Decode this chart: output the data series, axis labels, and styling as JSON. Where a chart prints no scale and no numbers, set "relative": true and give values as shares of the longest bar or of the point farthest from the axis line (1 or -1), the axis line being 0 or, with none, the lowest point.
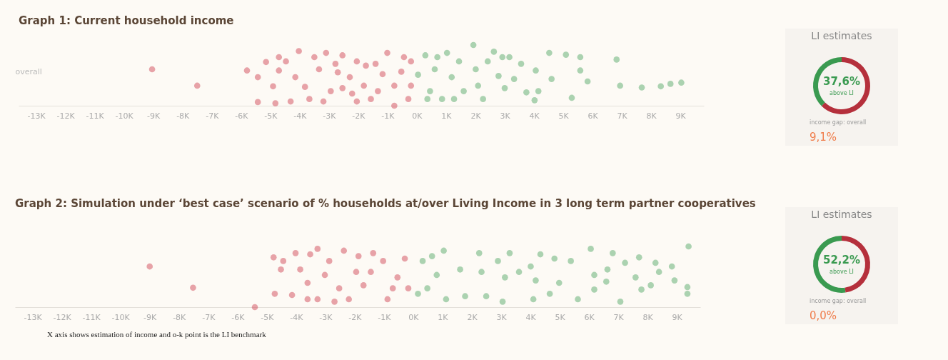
{
  "chart_data": [
    {
      "type": "scatter",
      "title": "Graph 1: Current household income",
      "ylabel": "overall",
      "relative": true,
      "xlim": [
        -13.6,
        9.8
      ],
      "xticks": [
        {
          "value": -13,
          "label": "-13K"
        },
        {
          "value": -12,
          "label": "-12K"
        },
        {
          "value": -11,
          "label": "-11K"
        },
        {
          "value": -10,
          "label": "-10K"
        },
        {
          "value": -9,
          "label": "-9K"
        },
        {
          "value": -8,
          "label": "-8K"
        },
        {
          "value": -7,
          "label": "-7K"
        },
        {
          "value": -6,
          "label": "-6K"
        },
        {
          "value": -5,
          "label": "-5K"
        },
        {
          "value": -4,
          "label": "-4K"
        },
        {
          "value": -3,
          "label": "-3K"
        },
        {
          "value": -2,
          "label": "-2K"
        },
        {
          "value": -1,
          "label": "-1K"
        },
        {
          "value": 0,
          "label": "0K"
        },
        {
          "value": 1,
          "label": "1K"
        },
        {
          "value": 2,
          "label": "2K"
        },
        {
          "value": 3,
          "label": "3K"
        },
        {
          "value": 4,
          "label": "4K"
        },
        {
          "value": 5,
          "label": "5K"
        },
        {
          "value": 6,
          "label": "6K"
        },
        {
          "value": 7,
          "label": "7K"
        },
        {
          "value": 8,
          "label": "8K"
        },
        {
          "value": 9,
          "label": "9K"
        }
      ],
      "series": [
        {
          "color": "#c8283c",
          "x": [
            -9.04,
            -7.5,
            -5.8,
            -5.43,
            -5.15,
            -5.43,
            -4.91,
            -4.83,
            -4.71,
            -4.71,
            -4.47,
            -4.03,
            -4.31,
            -3.82,
            -4.15,
            -3.67,
            -3.1,
            -3.34,
            -2.94,
            -2.54,
            -2.29,
            -2.05,
            -1.74,
            -1.33,
            -1.01,
            -0.53,
            -0.29,
            -0.44,
            -0.77,
            -1.57,
            -2.7,
            -3.19,
            -2.05,
            -1.17,
            -2.54,
            -0.2,
            -1.81,
            -3.5,
            -1.41,
            -2.21,
            -0.77,
            -2.78,
            -0.2
          ],
          "values": [
            0.6,
            0.33,
            0.58,
            0.47,
            0.72,
            0.06,
            0.32,
            0.04,
            0.8,
            0.58,
            0.73,
            0.9,
            0.07,
            0.31,
            0.47,
            0.11,
            0.87,
            0.6,
            0.24,
            0.83,
            0.47,
            0.07,
            0.66,
            0.24,
            0.87,
            0.56,
            0.11,
            0.8,
            0.33,
            0.11,
            0.55,
            0.07,
            0.73,
            0.52,
            0.29,
            0.33,
            0.33,
            0.8,
            0.69,
            0.2,
            0,
            0.69,
            0.73
          ]
        },
        {
          "color": "#3a9a50",
          "x": [
            0.29,
            0.45,
            0.61,
            0.86,
            1.03,
            1.19,
            1.44,
            1.6,
            1.93,
            2.01,
            2.09,
            2.26,
            2.42,
            2.63,
            2.79,
            2.92,
            3.16,
            3.0,
            3.32,
            3.56,
            3.74,
            4.06,
            4.15,
            4.02,
            4.52,
            4.6,
            5.09,
            5.29,
            5.58,
            5.58,
            5.83,
            6.82,
            6.94,
            7.68,
            8.33,
            8.66,
            9.03,
            0.36,
            0.04,
            0.7,
            1.27
          ],
          "values": [
            0.83,
            0.24,
            0.6,
            0.11,
            0.87,
            0.47,
            0.73,
            0.24,
            1,
            0.6,
            0.33,
            0.11,
            0.73,
            0.89,
            0.49,
            0.8,
            0.8,
            0.29,
            0.44,
            0.69,
            0.22,
            0.58,
            0.24,
            0.09,
            0.87,
            0.44,
            0.84,
            0.13,
            0.8,
            0.58,
            0.4,
            0.76,
            0.33,
            0.3,
            0.32,
            0.36,
            0.38,
            0.11,
            0.51,
            0.8,
            0.11
          ]
        }
      ]
    },
    {
      "type": "donut",
      "title": "LI estimates",
      "categories": [
        "above LI",
        null
      ],
      "values": [
        37.6,
        62.4
      ],
      "colors": [
        "#3a9a50",
        "#b5303c"
      ],
      "value_labels": [
        "37,6%",
        null
      ],
      "annotations": [
        "income gap: overall",
        "9,1%"
      ]
    },
    {
      "type": "scatter",
      "title": "Graph 2: Simulation under ‘best case’ scenario of % households at/over Living Income in 3 long term partner cooperatives",
      "relative": true,
      "xlim": [
        -13.6,
        9.8
      ],
      "xticks": [
        {
          "value": -13,
          "label": "-13K"
        },
        {
          "value": -12,
          "label": "-12K"
        },
        {
          "value": -11,
          "label": "-11K"
        },
        {
          "value": -10,
          "label": "-10K"
        },
        {
          "value": -9,
          "label": "-9K"
        },
        {
          "value": -8,
          "label": "-8K"
        },
        {
          "value": -7,
          "label": "-7K"
        },
        {
          "value": -6,
          "label": "-6K"
        },
        {
          "value": -5,
          "label": "-5K"
        },
        {
          "value": -4,
          "label": "-4K"
        },
        {
          "value": -3,
          "label": "-3K"
        },
        {
          "value": -2,
          "label": "-2K"
        },
        {
          "value": -1,
          "label": "-1K"
        },
        {
          "value": 0,
          "label": "0K"
        },
        {
          "value": 1,
          "label": "1K"
        },
        {
          "value": 2,
          "label": "2K"
        },
        {
          "value": 3,
          "label": "3K"
        },
        {
          "value": 4,
          "label": "4K"
        },
        {
          "value": 5,
          "label": "5K"
        },
        {
          "value": 6,
          "label": "6K"
        },
        {
          "value": 7,
          "label": "7K"
        },
        {
          "value": 8,
          "label": "8K"
        },
        {
          "value": 9,
          "label": "9K"
        }
      ],
      "annotations": [
        "X axis shows estimation of income and o-k point is the LI benchmark"
      ],
      "series": [
        {
          "color": "#c8283c",
          "x": [
            -9.0,
            -7.52,
            -5.41,
            -4.77,
            -4.44,
            -4.52,
            -4.73,
            -4.14,
            -4.02,
            -3.52,
            -3.27,
            -3.86,
            -3.61,
            -3.27,
            -2.87,
            -3.02,
            -2.53,
            -2.37,
            -2.2,
            -1.95,
            -1.7,
            -1.37,
            -1.03,
            -0.88,
            -0.54,
            -0.29,
            -0.17,
            -1.45,
            -0.7,
            -1.87,
            -2.69,
            -3.61
          ],
          "values": [
            0.67,
            0.32,
            0,
            0.82,
            0.76,
            0.62,
            0.22,
            0.2,
            0.89,
            0.87,
            0.96,
            0.62,
            0.4,
            0.13,
            0.76,
            0.53,
            0.31,
            0.93,
            0.13,
            0.58,
            0.36,
            0.89,
            0.76,
            0.13,
            0.49,
            0.8,
            0.31,
            0.58,
            0.31,
            0.84,
            0.09,
            0.13
          ]
        },
        {
          "color": "#3a9a50",
          "x": [
            0.32,
            0.48,
            0.8,
            1.04,
            1.12,
            1.6,
            1.77,
            2.25,
            2.33,
            2.49,
            2.89,
            3.05,
            3.29,
            3.13,
            3.61,
            4.01,
            4.18,
            4.1,
            4.34,
            4.66,
            4.82,
            4.98,
            5.38,
            5.62,
            6.06,
            6.18,
            6.18,
            6.63,
            6.81,
            6.59,
            7.07,
            7.23,
            7.59,
            7.71,
            7.79,
            8.11,
            8.27,
            8.39,
            8.83,
            8.92,
            9.4,
            9.36,
            9.36,
            0.16,
            0.64
          ],
          "values": [
            0.76,
            0.31,
            0.53,
            0.93,
            0.13,
            0.62,
            0.18,
            0.89,
            0.58,
            0.18,
            0.76,
            0.09,
            0.89,
            0.49,
            0.58,
            0.67,
            0.44,
            0.13,
            0.87,
            0.22,
            0.8,
            0.4,
            0.76,
            0.13,
            0.96,
            0.53,
            0.29,
            0.62,
            0.89,
            0.42,
            0.09,
            0.73,
            0.49,
            0.82,
            0.29,
            0.36,
            0.73,
            0.58,
            0.67,
            0.44,
            1,
            0.33,
            0.22,
            0.22,
            0.84
          ]
        }
      ]
    },
    {
      "type": "donut",
      "title": "LI estimates",
      "categories": [
        "above LI",
        null
      ],
      "values": [
        52.2,
        47.8
      ],
      "colors": [
        "#3a9a50",
        "#b5303c"
      ],
      "value_labels": [
        "52,2%",
        null
      ],
      "annotations": [
        "income gap: overall",
        "0,0%"
      ]
    }
  ]
}
